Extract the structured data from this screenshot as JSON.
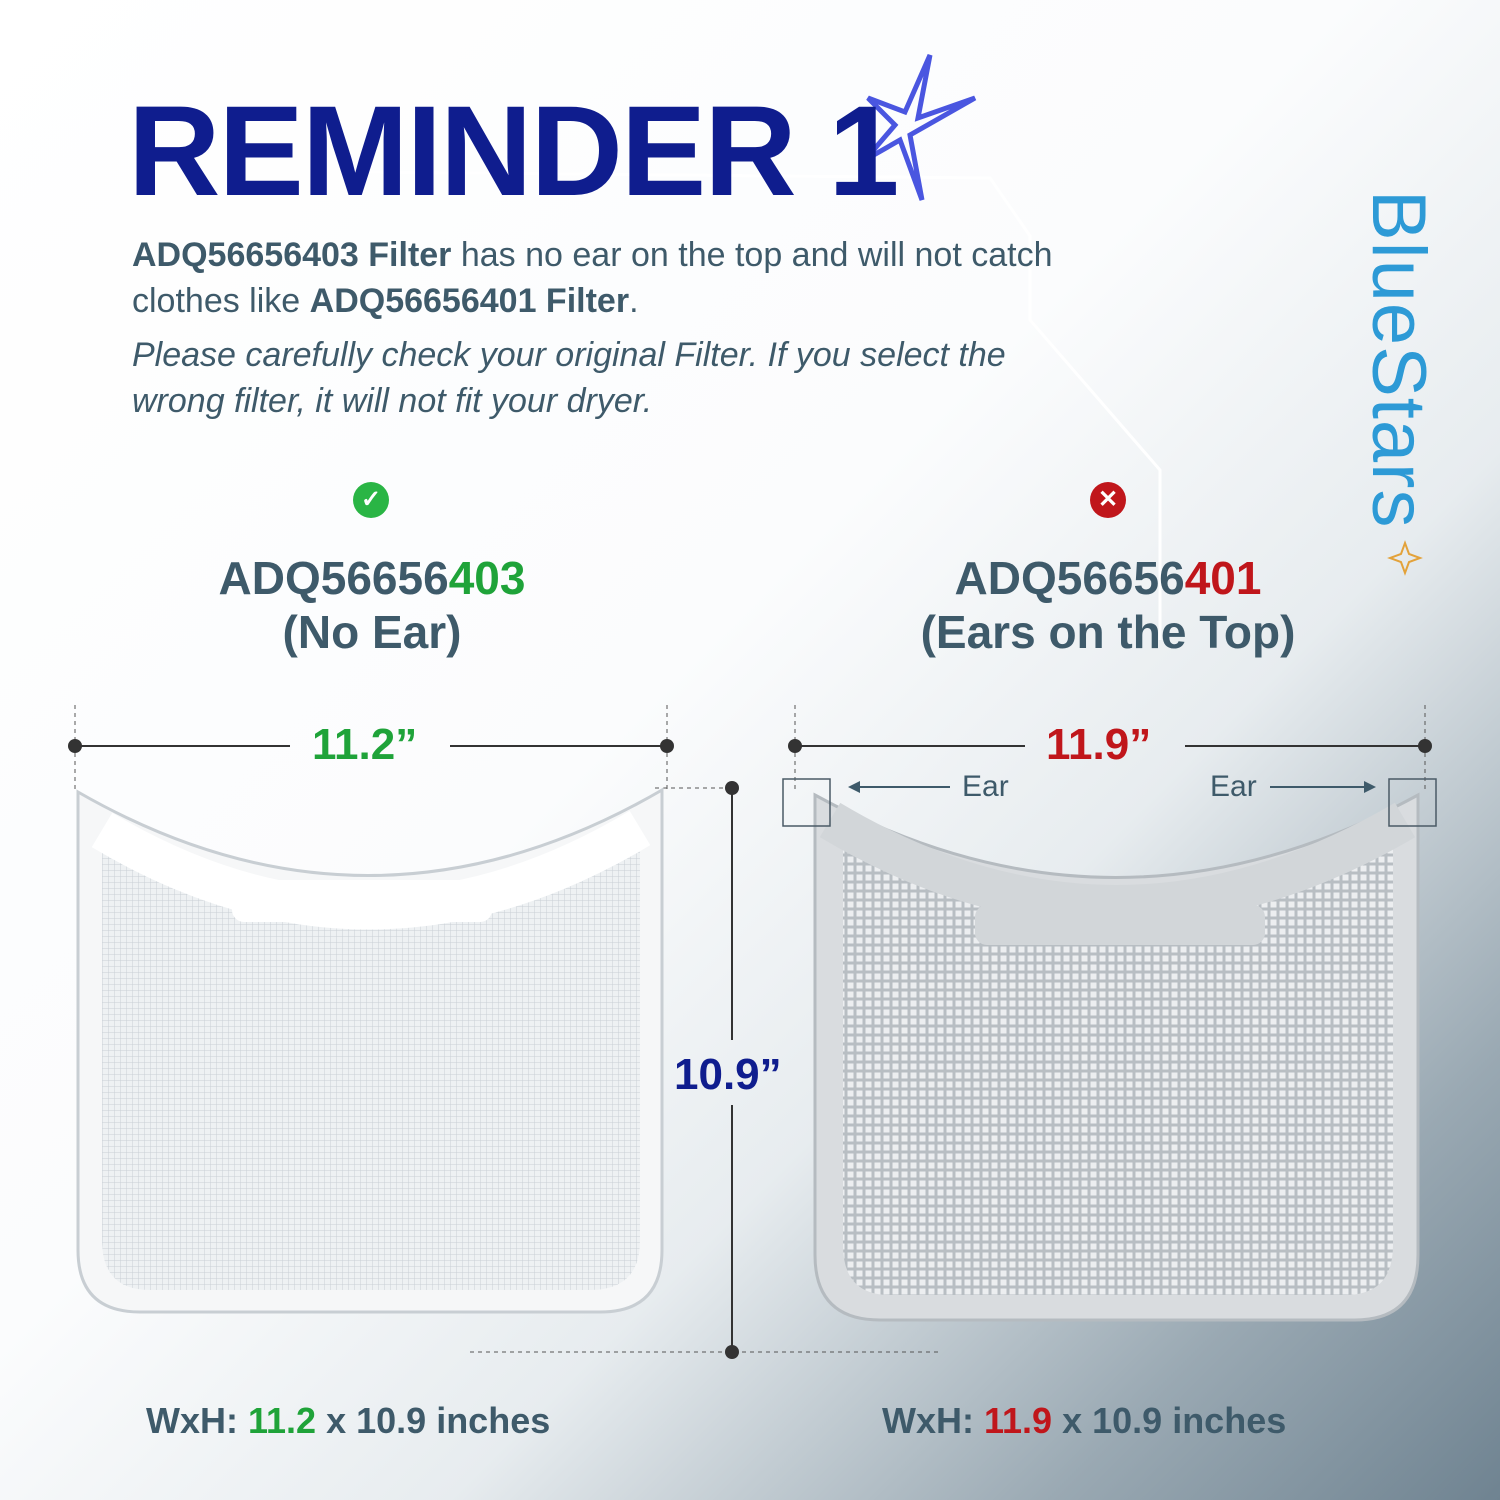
{
  "title": "REMINDER 1",
  "intro": {
    "line1_part1": "ADQ56656",
    "line1_part1_highlight": "403",
    "line1_part2": " Filter",
    "line1_part3": " has no ear on the top and will not catch clothes like ",
    "line1_part4": "ADQ56656",
    "line1_part4_highlight": "401",
    "line1_part5": " Filter",
    "line1_end": ".",
    "note": "Please carefully check your original Filter. If you select the wrong filter, it will not fit your dryer."
  },
  "logo": "BlueStars",
  "left": {
    "status_icon": "check-circle-icon",
    "model_prefix": "ADQ56656",
    "model_suffix": "403",
    "subtitle": "(No Ear)",
    "width_label": "11.2”",
    "bottom_prefix": "WxH: ",
    "bottom_width": "11.2",
    "bottom_rest": " x 10.9 inches"
  },
  "right": {
    "status_icon": "x-circle-icon",
    "model_prefix": "ADQ56656",
    "model_suffix": "401",
    "subtitle": "(Ears on the Top)",
    "width_label": "11.9”",
    "ear_left": "Ear",
    "ear_right": "Ear",
    "bottom_prefix": "WxH: ",
    "bottom_width": "11.9",
    "bottom_rest": " x 10.9 inches"
  },
  "height_label": "10.9”",
  "colors": {
    "title": "#0f1d8e",
    "good": "#1fa339",
    "bad": "#c0161b",
    "text": "#3e5a6a",
    "logo": "#2d9ad6"
  }
}
